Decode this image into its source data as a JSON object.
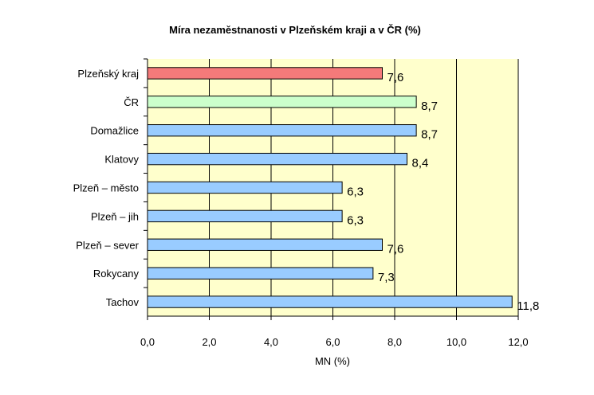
{
  "chart_data": {
    "type": "bar",
    "orientation": "horizontal",
    "title": "Míra nezaměstnanosti v Plzeňském kraji a v ČR (%)",
    "xlabel": "MN (%)",
    "ylabel": "",
    "xlim": [
      0,
      12
    ],
    "xticks": [
      "0,0",
      "2,0",
      "4,0",
      "6,0",
      "8,0",
      "10,0",
      "12,0"
    ],
    "grid": true,
    "legend": "none",
    "categories": [
      "Plzeňský kraj",
      "ČR",
      "Domažlice",
      "Klatovy",
      "Plzeň – město",
      "Plzeň – jih",
      "Plzeň – sever",
      "Rokycany",
      "Tachov"
    ],
    "values": [
      7.6,
      8.7,
      8.7,
      8.4,
      6.3,
      6.3,
      7.6,
      7.3,
      11.8
    ],
    "value_labels": [
      "7,6",
      "8,7",
      "8,7",
      "8,4",
      "6,3",
      "6,3",
      "7,6",
      "7,3",
      "11,8"
    ],
    "bar_colors": [
      "#f47a7a",
      "#ccffcc",
      "#99ccff",
      "#99ccff",
      "#99ccff",
      "#99ccff",
      "#99ccff",
      "#99ccff",
      "#99ccff"
    ],
    "plot_background": "#ffffcc"
  }
}
